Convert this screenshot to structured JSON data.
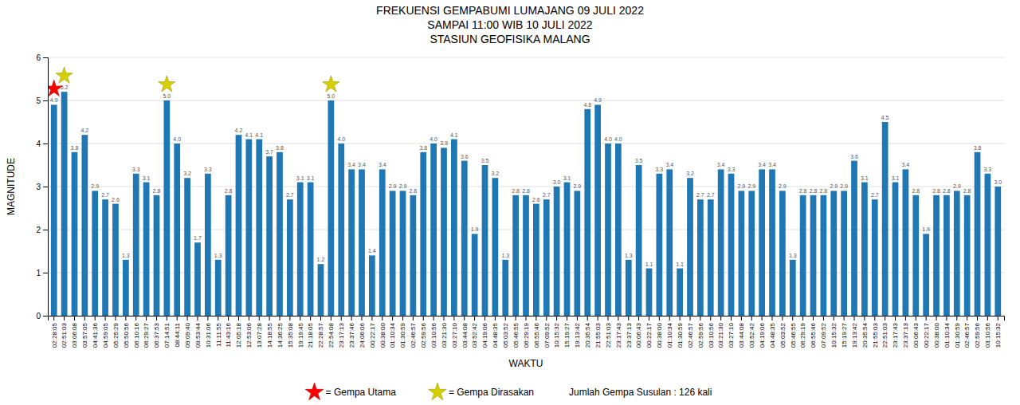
{
  "chart_data": {
    "type": "bar",
    "title": "FREKUENSI GEMPABUMI LUMAJANG 09 JULI 2022\nSAMPAI 11:00 WIB 10 JULI 2022\nSTASIUN GEOFISIKA MALANG",
    "x_label": "WAKTU",
    "y_label": "MAGNITUDE",
    "categories": [
      "02:28:05",
      "02:51:03",
      "03:06:08",
      "03:57:05",
      "04:41:36",
      "04:59:05",
      "05:25:29",
      "05:50:56",
      "06:10:16",
      "06:29:27",
      "06:37:53",
      "07:14:51",
      "08:44:11",
      "09:09:40",
      "09:53:44",
      "10:31:06",
      "11:11:55",
      "11:43:16",
      "12:05:18",
      "12:53:06",
      "13:07:28",
      "14:18:55",
      "14:36:25",
      "15:35:08",
      "19:19:45",
      "21:18:05",
      "22:28:57",
      "22:54:08",
      "23:17:13",
      "23:37:46",
      "24:06:06",
      "00:22:17",
      "00:38:00",
      "01:10:34",
      "01:30:59",
      "02:46:57",
      "02:59:56",
      "03:10:56",
      "03:21:30",
      "03:27:10",
      "03:44:08",
      "03:52:42",
      "04:19:06",
      "04:48:35",
      "05:03:52",
      "05:46:55",
      "06:29:19",
      "06:55:46",
      "07:09:52",
      "10:15:32",
      "15:19:27",
      "19:13:42",
      "20:35:54",
      "21:55:03",
      "22:51:03",
      "23:17:43",
      "23:37:13",
      "00:06:43",
      "00:22:17",
      "00:38:00",
      "01:10:34",
      "01:30:59",
      "02:46:57",
      "02:59:56",
      "03:10:56",
      "03:21:30",
      "03:27:10",
      "03:44:08",
      "03:52:42",
      "04:19:06",
      "04:48:35",
      "05:03:52",
      "05:46:55",
      "06:29:19",
      "06:55:46",
      "07:09:52",
      "10:15:32",
      "15:19:27",
      "19:13:42",
      "20:35:54",
      "21:55:03",
      "22:51:03",
      "23:17:43",
      "23:37:13",
      "00:06:43",
      "00:22:17",
      "00:38:00",
      "01:10:34",
      "01:30:59",
      "02:46:57",
      "02:59:56",
      "03:10:56",
      "10:15:32"
    ],
    "values": [
      4.9,
      5.2,
      3.8,
      4.2,
      2.9,
      2.7,
      2.6,
      1.3,
      3.3,
      3.1,
      2.8,
      5.0,
      4.0,
      3.2,
      1.7,
      3.3,
      1.3,
      2.8,
      4.2,
      4.1,
      4.1,
      3.7,
      3.8,
      2.7,
      3.1,
      3.1,
      1.2,
      5.0,
      4.0,
      3.4,
      3.4,
      1.4,
      3.4,
      2.9,
      2.9,
      2.8,
      3.8,
      4.0,
      3.9,
      4.1,
      3.6,
      1.9,
      3.5,
      3.2,
      1.3,
      2.8,
      2.8,
      2.6,
      2.7,
      3.0,
      3.1,
      2.9,
      4.8,
      4.9,
      4.0,
      4.0,
      1.3,
      3.5,
      1.1,
      3.3,
      3.4,
      1.1,
      3.2,
      2.7,
      2.7,
      3.4,
      3.3,
      2.9,
      2.9,
      3.4,
      3.4,
      2.9,
      1.3,
      2.8,
      2.8,
      2.8,
      2.9,
      2.9,
      3.6,
      3.1,
      2.7,
      4.5,
      3.1,
      3.4,
      2.8,
      1.9,
      2.8,
      2.8,
      2.9,
      2.8,
      3.8,
      3.3,
      3.0
    ],
    "value_labels": [
      "4.9",
      "5.2",
      "3.8",
      "4.2",
      "2.9",
      "2.7",
      "2.6",
      "1.3",
      "3.3",
      "3.1",
      "2.8",
      "5.0",
      "4.0",
      "3.2",
      "1.7",
      "3.3",
      "1.3",
      "2.8",
      "4.2",
      "4.1",
      "4.1",
      "3.7",
      "3.8",
      "2.7",
      "3.1",
      "3.1",
      "1.2",
      "5.0",
      "4.0",
      "3.4",
      "3.4",
      "1.4",
      "3.4",
      "2.9",
      "2.9",
      "2.8",
      "3.8",
      "4.0",
      "3.9",
      "4.1",
      "3.6",
      "1.9",
      "3.5",
      "3.2",
      "1.3",
      "2.8",
      "2.8",
      "2.6",
      "2.7",
      "3.0",
      "3.1",
      "2.9",
      "4.8",
      "4.9",
      "4.0",
      "4.0",
      "1.3",
      "3.5",
      "1.1",
      "3.3",
      "3.4",
      "1.1",
      "3.2",
      "2.7",
      "2.7",
      "3.4",
      "3.3",
      "2.9",
      "2.9",
      "3.4",
      "3.4",
      "2.9",
      "1.3",
      "2.8",
      "2.8",
      "2.8",
      "2.9",
      "2.9",
      "3.6",
      "3.1",
      "2.7",
      "4.5",
      "3.1",
      "3.4",
      "2.8",
      "1.9",
      "2.8",
      "2.8",
      "2.9",
      "2.8",
      "3.8",
      "3.3",
      "3.0"
    ],
    "ylim": [
      0,
      6
    ],
    "yticks": [
      0,
      1,
      2,
      3,
      4,
      5,
      6
    ],
    "grid": true,
    "data_labels": true,
    "highlights": [
      {
        "name": "= Gempa Utama",
        "color": "red",
        "marker": "star",
        "indices": [
          0
        ]
      },
      {
        "name": "= Gempa Dirasakan",
        "color": "#D4D000",
        "marker": "star",
        "indices": [
          1,
          11,
          27
        ]
      }
    ],
    "annotations": [
      "Jumlah Gempa Susulan : 126 kali"
    ]
  }
}
